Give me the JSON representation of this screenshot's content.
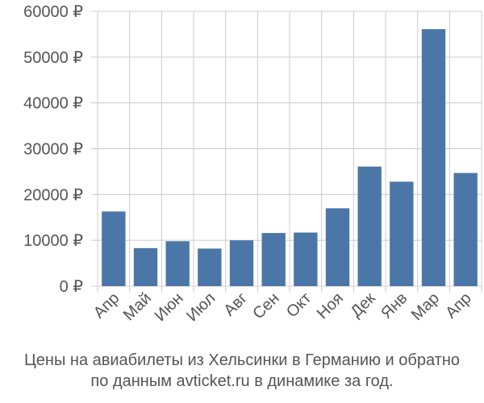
{
  "chart_data": {
    "type": "bar",
    "categories": [
      "Апр",
      "Май",
      "Июн",
      "Июл",
      "Авг",
      "Сен",
      "Окт",
      "Ноя",
      "Дек",
      "Янв",
      "Мар",
      "Апр"
    ],
    "values": [
      16300,
      8300,
      9800,
      8200,
      10000,
      11600,
      11700,
      17000,
      26100,
      22800,
      56100,
      24700
    ],
    "ylim": [
      0,
      60000
    ],
    "yticks": [
      0,
      10000,
      20000,
      30000,
      40000,
      50000,
      60000
    ],
    "ytick_labels": [
      "0 ₽",
      "10000 ₽",
      "20000 ₽",
      "30000 ₽",
      "40000 ₽",
      "50000 ₽",
      "60000 ₽"
    ],
    "grid": true,
    "bar_color": "#4b76a8",
    "grid_color": "#cccccc"
  },
  "caption": {
    "line1": "Цены на авиабилеты из Хельсинки в Германию и обратно",
    "line2": "по данным avticket.ru в динамике за год."
  }
}
